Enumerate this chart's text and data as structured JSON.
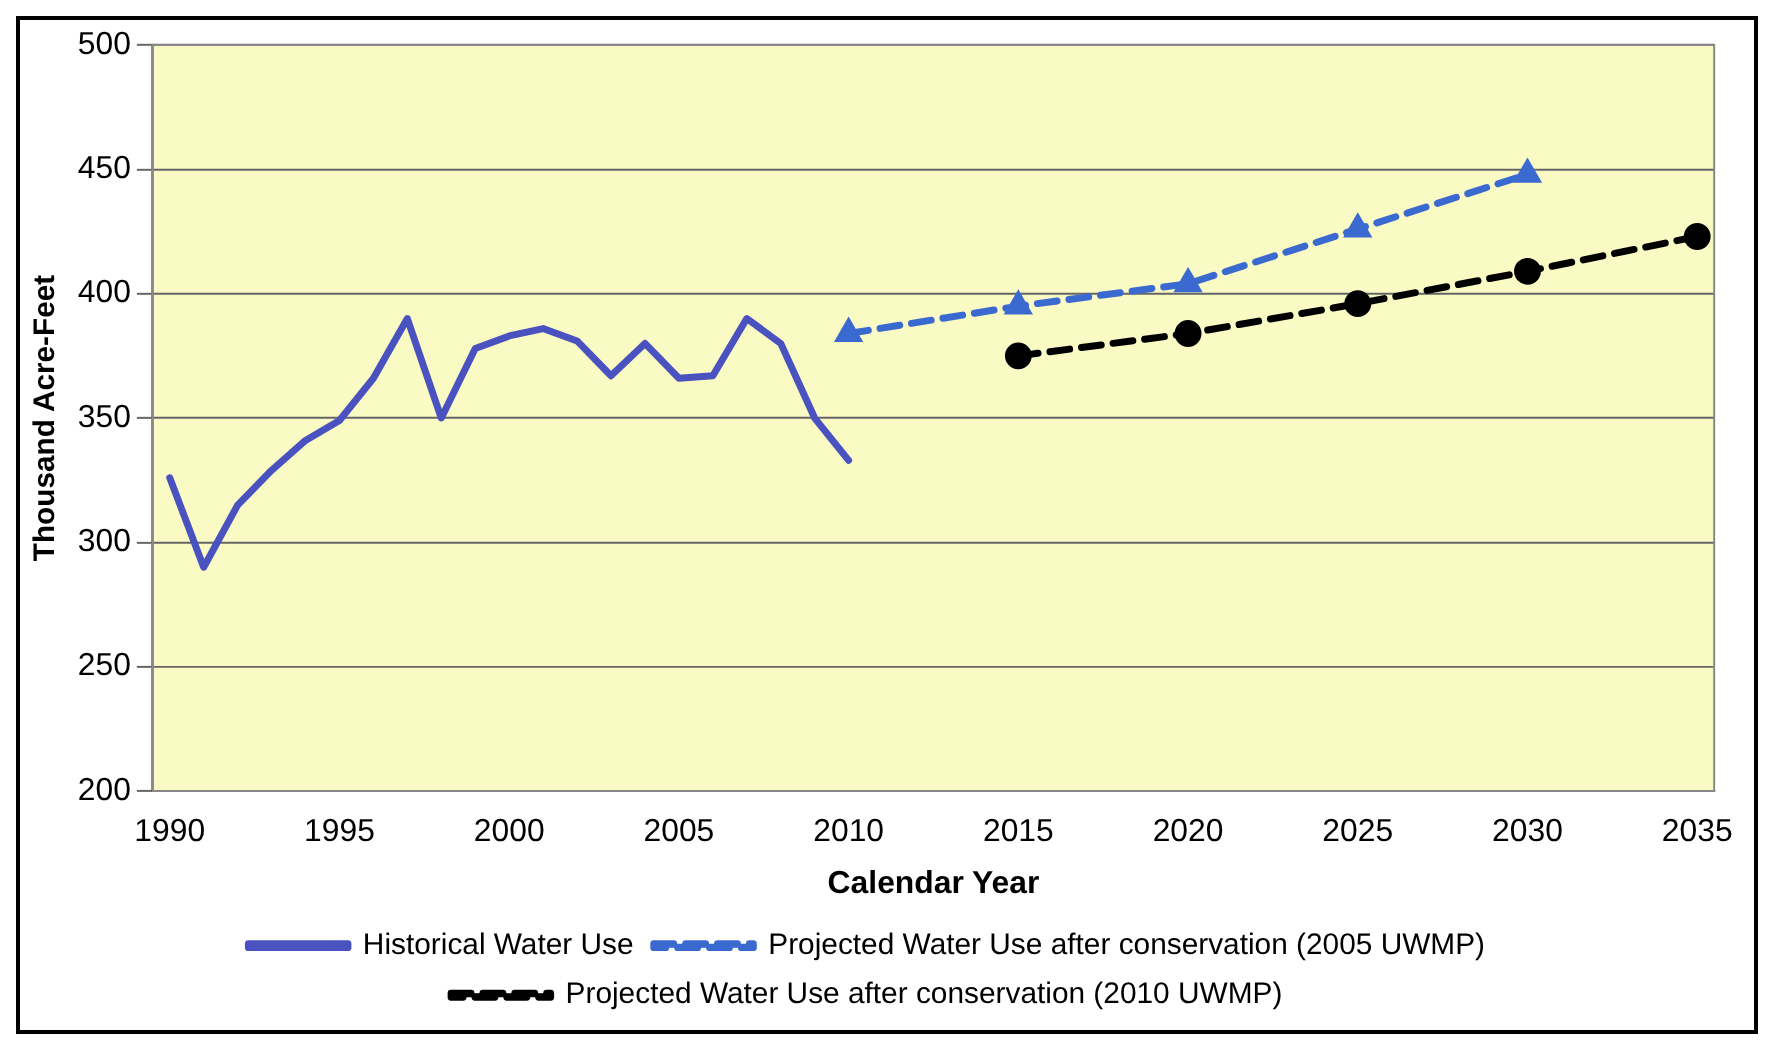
{
  "chart_data": {
    "type": "line",
    "xlabel": "Calendar Year",
    "ylabel": "Thousand Acre-Feet",
    "xlim": [
      1989.5,
      2035.5
    ],
    "xticks": [
      1990,
      1995,
      2000,
      2005,
      2010,
      2015,
      2020,
      2025,
      2030,
      2035
    ],
    "ylim": [
      200,
      500
    ],
    "yticks": [
      200,
      250,
      300,
      350,
      400,
      450,
      500
    ],
    "grid": "y",
    "legend": "bottom",
    "series": [
      {
        "name": "Historical Water Use",
        "color": "#4a52c0",
        "marker": "none",
        "line_style": "solid",
        "x": [
          1990,
          1991,
          1992,
          1993,
          1994,
          1995,
          1996,
          1997,
          1998,
          1999,
          2000,
          2001,
          2002,
          2003,
          2004,
          2005,
          2006,
          2007,
          2008,
          2009,
          2010
        ],
        "values": [
          326,
          290,
          315,
          329,
          341,
          349,
          366,
          390,
          350,
          378,
          383,
          386,
          381,
          367,
          380,
          366,
          367,
          390,
          380,
          350,
          333
        ]
      },
      {
        "name": "Projected Water Use after conservation (2005 UWMP)",
        "color": "#3a6ad0",
        "marker": "triangle",
        "line_style": "dashed",
        "x": [
          2010,
          2015,
          2020,
          2025,
          2030
        ],
        "values": [
          384,
          395,
          404,
          426,
          448
        ]
      },
      {
        "name": "Projected Water Use after conservation (2010 UWMP)",
        "color": "#000000",
        "marker": "circle",
        "line_style": "dashed",
        "x": [
          2015,
          2020,
          2025,
          2030,
          2035
        ],
        "values": [
          375,
          384,
          396,
          409,
          423
        ]
      }
    ]
  }
}
